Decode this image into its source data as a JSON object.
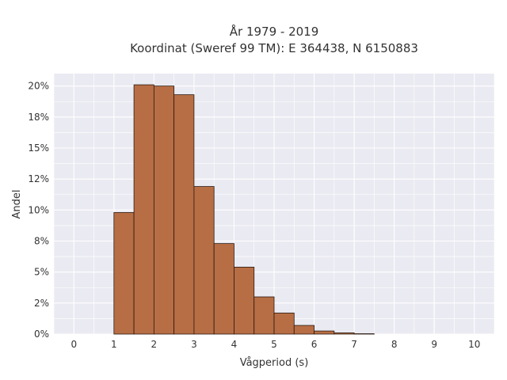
{
  "chart_data": {
    "type": "bar",
    "title_lines": [
      "År 1979 - 2019",
      "Koordinat (Sweref 99 TM): E 364438, N 6150883"
    ],
    "xlabel": "Vågperiod (s)",
    "ylabel": "Andel",
    "xlim": [
      -0.5,
      10.5
    ],
    "ylim": [
      0,
      0.21
    ],
    "x_ticks": [
      0,
      1,
      2,
      3,
      4,
      5,
      6,
      7,
      8,
      9,
      10
    ],
    "x_tick_labels": [
      "0",
      "1",
      "2",
      "3",
      "4",
      "5",
      "6",
      "7",
      "8",
      "9",
      "10"
    ],
    "y_ticks": [
      0,
      0.025,
      0.05,
      0.075,
      0.1,
      0.125,
      0.15,
      0.175,
      0.2
    ],
    "y_tick_labels": [
      "0%",
      "2%",
      "5%",
      "8%",
      "10%",
      "12%",
      "15%",
      "18%",
      "20%"
    ],
    "bin_width": 0.5,
    "bin_starts": [
      1.0,
      1.5,
      2.0,
      2.5,
      3.0,
      3.5,
      4.0,
      4.5,
      5.0,
      5.5,
      6.0,
      6.5,
      7.0
    ],
    "values": [
      0.098,
      0.201,
      0.2,
      0.193,
      0.119,
      0.073,
      0.054,
      0.03,
      0.017,
      0.007,
      0.0025,
      0.001,
      0.0003
    ],
    "bar_color": "#b76e45",
    "bar_edge_color": "#2b1a10",
    "background_color": "#eaeaf2",
    "grid": true,
    "grid_color": "#ffffff"
  }
}
